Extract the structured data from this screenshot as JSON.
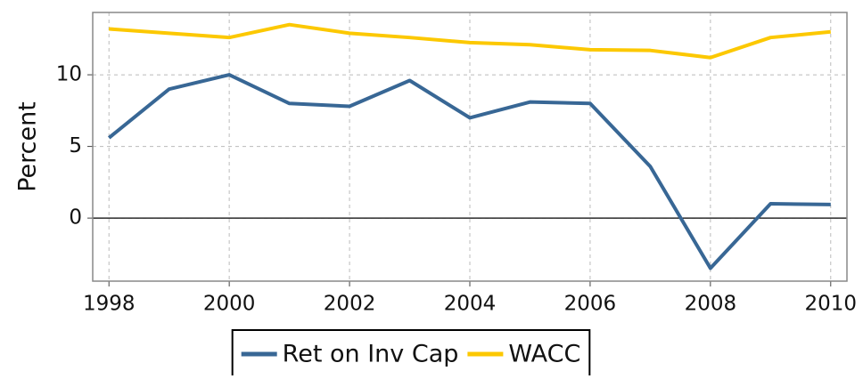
{
  "chart_data": {
    "type": "line",
    "y_label": "Percent",
    "x": [
      1998,
      1999,
      2000,
      2001,
      2002,
      2003,
      2004,
      2005,
      2006,
      2007,
      2008,
      2009,
      2010
    ],
    "series": [
      {
        "name": "Ret on Inv Cap",
        "color": "#386795",
        "values": [
          5.6,
          9.0,
          10.0,
          8.0,
          7.8,
          9.6,
          7.0,
          8.1,
          8.0,
          3.6,
          -3.5,
          1.0,
          0.95
        ]
      },
      {
        "name": "WACC",
        "color": "#fcc800",
        "values": [
          13.2,
          12.9,
          12.6,
          13.5,
          12.9,
          12.6,
          12.25,
          12.1,
          11.75,
          11.7,
          11.2,
          12.6,
          13.0
        ]
      }
    ],
    "xlim": [
      1997.73,
      2010.27
    ],
    "ylim": [
      -4.4,
      14.35
    ],
    "xticks": [
      1998,
      2000,
      2002,
      2004,
      2006,
      2008,
      2010
    ],
    "yticks": [
      0,
      5,
      10
    ],
    "grid": true,
    "zero_line": true,
    "legend": "bottom"
  }
}
